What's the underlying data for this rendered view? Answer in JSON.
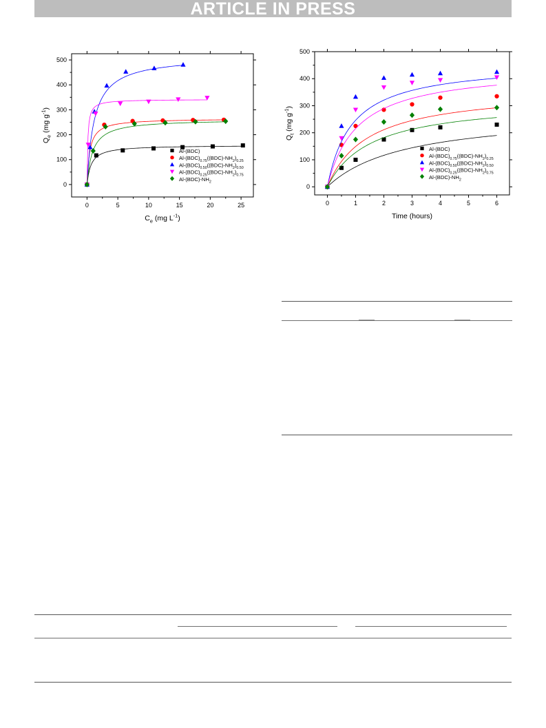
{
  "banner": {
    "text": "ARTICLE IN PRESS"
  },
  "chart_data": [
    {
      "type": "scatter",
      "xlabel": "C_e (mg L^-1)",
      "ylabel": "Q_e (mg g^-1)",
      "xlim": [
        -2.5,
        27
      ],
      "ylim": [
        -50,
        525
      ],
      "xticks": [
        0,
        5,
        10,
        15,
        20,
        25
      ],
      "yticks": [
        0,
        100,
        200,
        300,
        400,
        500
      ],
      "legend_position": "bottom-right",
      "series": [
        {
          "name": "Al-(BDC)",
          "color": "#000000",
          "marker": "square",
          "x": [
            0,
            1.5,
            5.8,
            10.8,
            15.5,
            20.4,
            25.3
          ],
          "y": [
            0,
            117,
            137,
            145,
            150,
            153,
            157
          ],
          "fit": {
            "qmax": 158,
            "k": 1.5
          }
        },
        {
          "name": "Al-(BDC)0.75((BDC)-NH2)0.25",
          "color": "#ff0000",
          "marker": "circle",
          "x": [
            0,
            2.8,
            7.4,
            12.3,
            17.2,
            22.2
          ],
          "y": [
            0,
            240,
            255,
            257,
            259,
            260
          ],
          "fit": {
            "qmax": 265,
            "k": 2.2
          }
        },
        {
          "name": "Al-(BDC)0.50((BDC)-NH2)0.50",
          "color": "#0000ff",
          "marker": "triangle-up",
          "x": [
            0,
            0.5,
            1.2,
            3.2,
            6.3,
            10.9,
            15.6
          ],
          "y": [
            0,
            150,
            293,
            397,
            453,
            467,
            481
          ],
          "fit": {
            "qmax": 515,
            "k": 0.85
          }
        },
        {
          "name": "Al-(BDC)0.25((BDC)-NH2)0.75",
          "color": "#ff00ff",
          "marker": "triangle-down",
          "x": [
            0,
            0.2,
            1.4,
            5.4,
            10.0,
            14.8,
            19.5
          ],
          "y": [
            0,
            160,
            285,
            325,
            333,
            342,
            348
          ],
          "fit": {
            "qmax": 342,
            "k": 8
          }
        },
        {
          "name": "Al-(BDC)-NH2",
          "color": "#008000",
          "marker": "diamond",
          "x": [
            0,
            1.0,
            3.0,
            7.7,
            12.7,
            17.6,
            22.5
          ],
          "y": [
            0,
            135,
            232,
            244,
            248,
            252,
            254
          ],
          "fit": {
            "qmax": 262,
            "k": 1.1
          }
        }
      ]
    },
    {
      "type": "scatter",
      "xlabel": "Time (hours)",
      "ylabel": "Q_t (mg g^-1)",
      "xlim": [
        -0.45,
        6.45
      ],
      "ylim": [
        -30,
        500
      ],
      "xticks": [
        0,
        1,
        2,
        3,
        4,
        5,
        6
      ],
      "yticks": [
        0,
        100,
        200,
        300,
        400,
        500
      ],
      "legend_position": "bottom-right",
      "series": [
        {
          "name": "Al-(BDC)",
          "color": "#000000",
          "marker": "square",
          "x": [
            0,
            0.5,
            1,
            2,
            3,
            4,
            6
          ],
          "y": [
            0,
            70,
            100,
            175,
            210,
            220,
            230
          ],
          "fit": {
            "qe": 278,
            "k": 0.36
          }
        },
        {
          "name": "Al-(BDC)0.75((BDC)-NH2)0.25",
          "color": "#ff0000",
          "marker": "circle",
          "x": [
            0,
            0.5,
            1,
            2,
            3,
            4,
            6
          ],
          "y": [
            0,
            155,
            225,
            285,
            305,
            330,
            335
          ],
          "fit": {
            "qe": 362,
            "k": 0.7
          }
        },
        {
          "name": "Al-(BDC)0.50((BDC)-NH2)0.50",
          "color": "#0000ff",
          "marker": "triangle-up",
          "x": [
            0,
            0.5,
            1,
            2,
            3,
            4,
            6
          ],
          "y": [
            0,
            225,
            333,
            403,
            415,
            420,
            425
          ],
          "fit": {
            "qe": 460,
            "k": 1.15
          }
        },
        {
          "name": "Al-(BDC)0.25((BDC)-NH2)0.75",
          "color": "#ff00ff",
          "marker": "triangle-down",
          "x": [
            0,
            0.5,
            1,
            2,
            3,
            4,
            6
          ],
          "y": [
            0,
            180,
            285,
            368,
            385,
            395,
            405
          ],
          "fit": {
            "qe": 442,
            "k": 0.95
          }
        },
        {
          "name": "Al-(BDC)-NH2",
          "color": "#008000",
          "marker": "diamond",
          "x": [
            0,
            0.5,
            1,
            2,
            3,
            4,
            6
          ],
          "y": [
            0,
            115,
            175,
            240,
            265,
            287,
            293
          ],
          "fit": {
            "qe": 322,
            "k": 0.65
          }
        }
      ]
    }
  ]
}
